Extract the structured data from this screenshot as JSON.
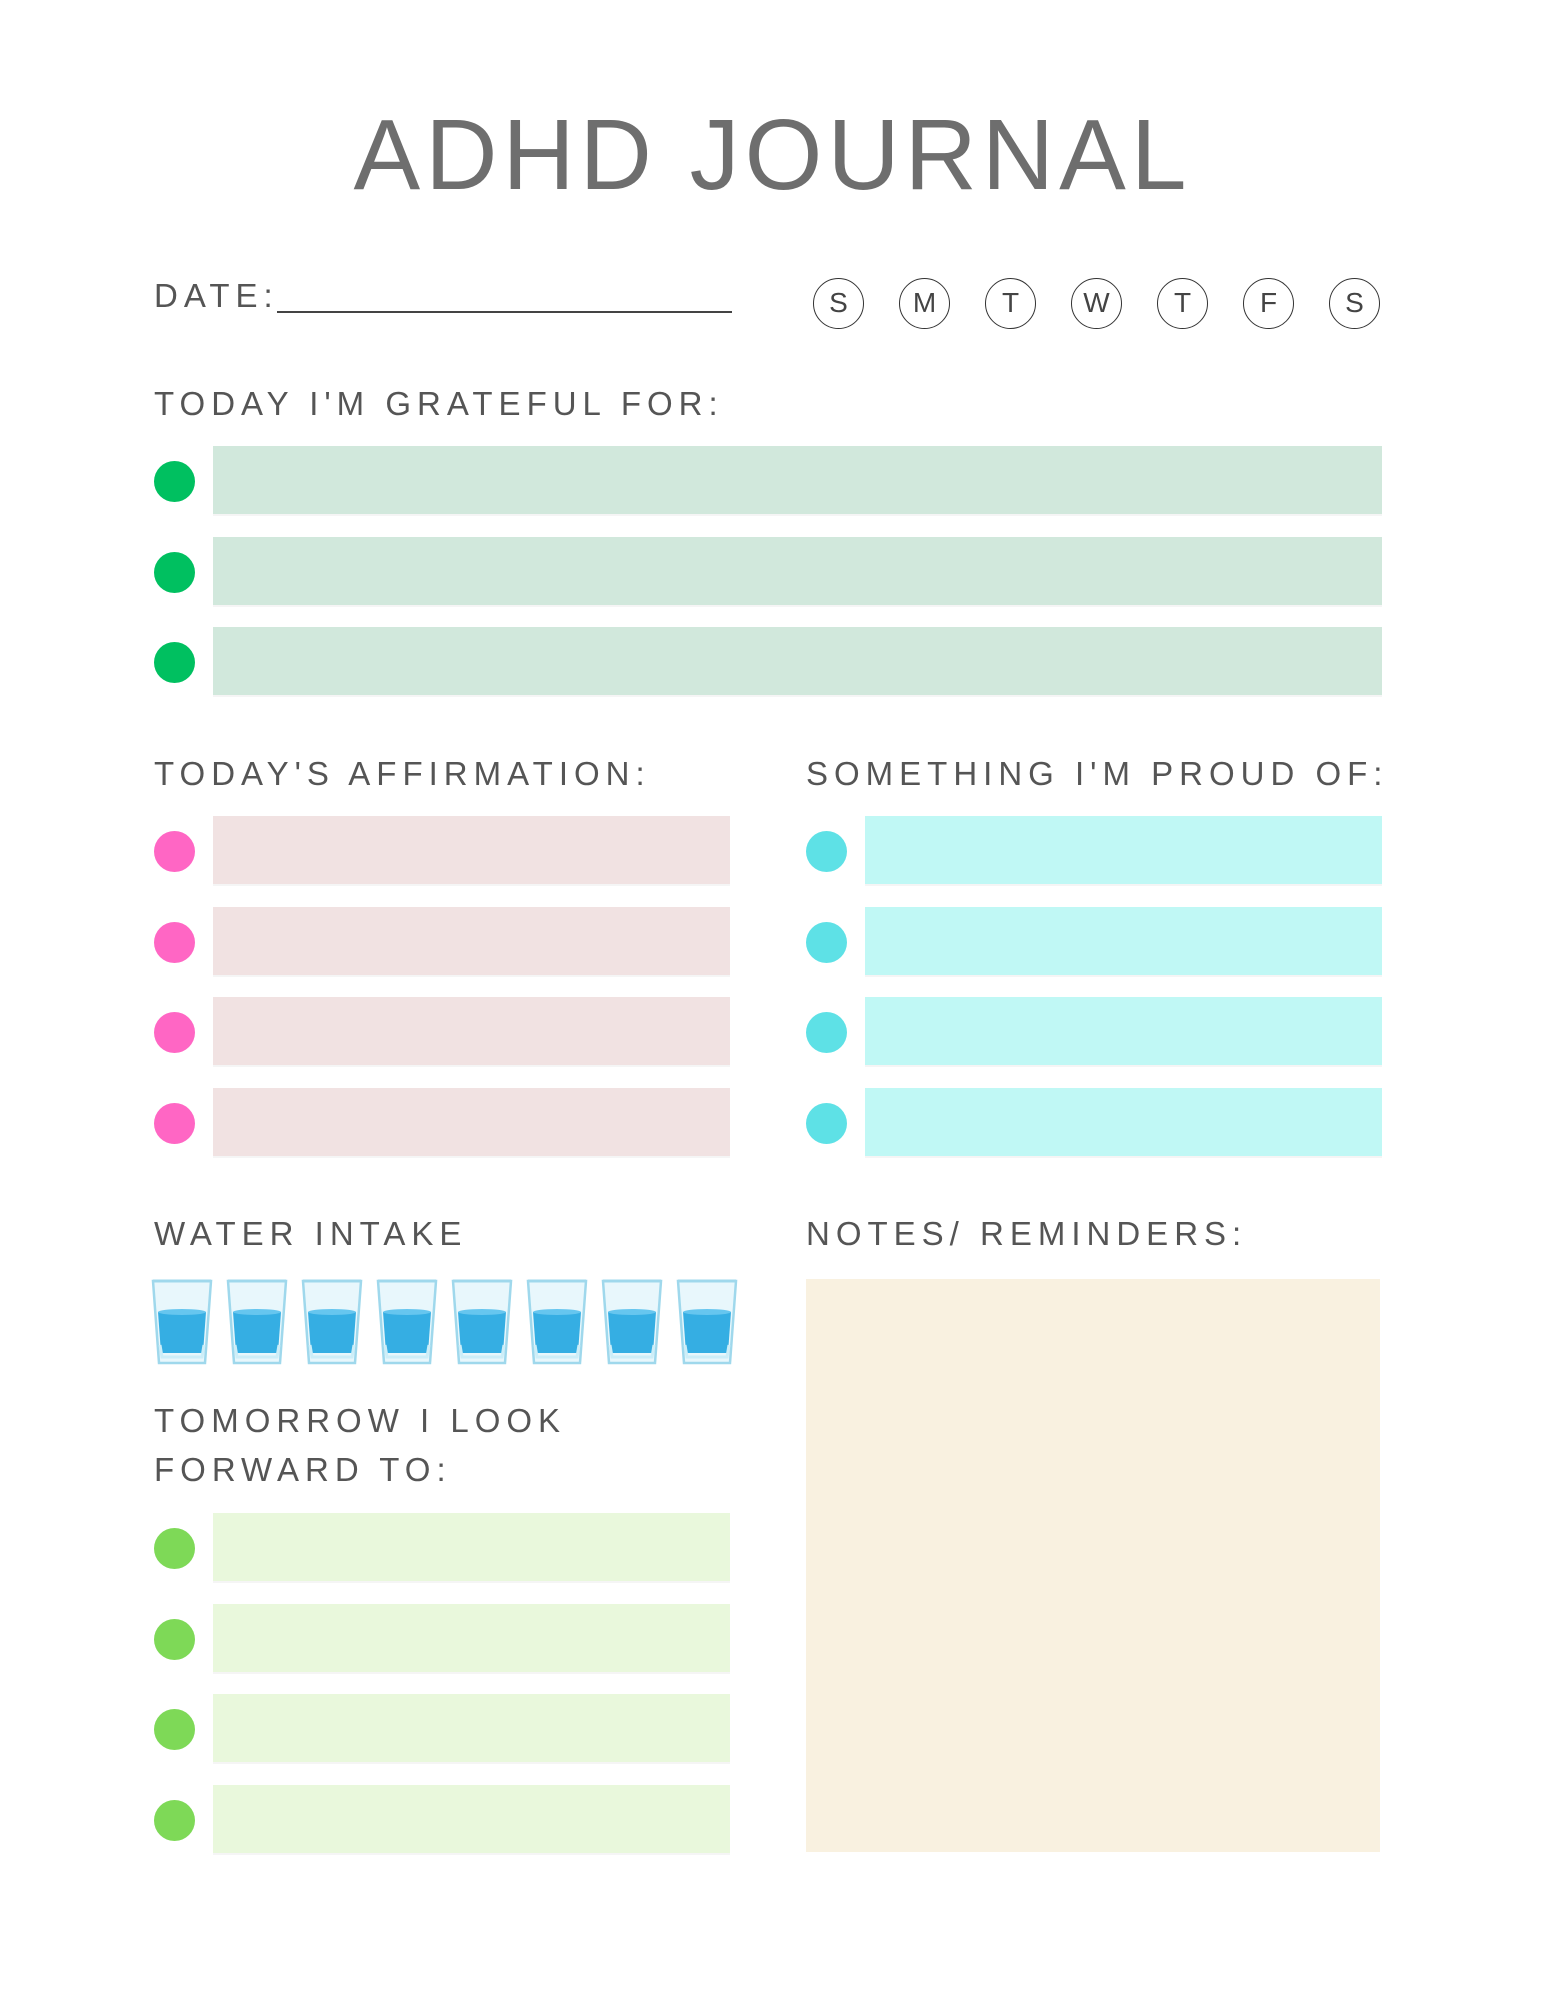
{
  "title": "ADHD JOURNAL",
  "date_label": "DATE:",
  "days": [
    "S",
    "M",
    "T",
    "W",
    "T",
    "F",
    "S"
  ],
  "grateful": {
    "label": "TODAY I'M GRATEFUL FOR:",
    "lines": 3,
    "dot_color": "#00c060",
    "bar_color": "#d1e8dc"
  },
  "affirmation": {
    "label": "TODAY'S AFFIRMATION:",
    "lines": 4,
    "dot_color": "#ff66c4",
    "bar_color": "#f1e2e2"
  },
  "proud": {
    "label": "SOMETHING I'M PROUD OF:",
    "lines": 4,
    "dot_color": "#5ee1e6",
    "bar_color": "#c0f8f5"
  },
  "water": {
    "label": "WATER INTAKE",
    "glasses": 8,
    "icon": "water-glass-icon"
  },
  "tomorrow": {
    "label_line1": "TOMORROW I LOOK",
    "label_line2": "FORWARD TO:",
    "lines": 4,
    "dot_color": "#7ed957",
    "bar_color": "#e9f8dc"
  },
  "notes": {
    "label": "NOTES/ REMINDERS:",
    "box_color": "#f9f1e0"
  }
}
